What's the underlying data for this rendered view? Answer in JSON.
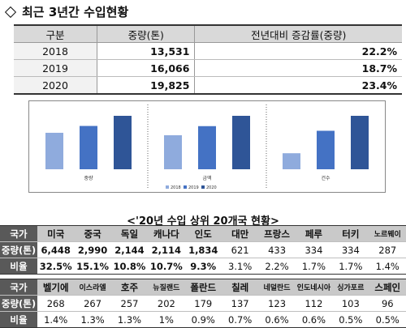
{
  "page": {
    "title": "최근 3년간 수입현황"
  },
  "summary": {
    "headers": [
      "구분",
      "중량(톤)",
      "전년대비 증감률(중량)"
    ],
    "rows": [
      {
        "year": "2018",
        "weight": "13,531",
        "rate": "22.2%"
      },
      {
        "year": "2019",
        "weight": "16,066",
        "rate": "18.7%"
      },
      {
        "year": "2020",
        "weight": "19,825",
        "rate": "23.4%"
      }
    ]
  },
  "chart_data": {
    "type": "bar",
    "categories": [
      "중량",
      "금액",
      "건수"
    ],
    "series": [
      {
        "name": "2018",
        "values": [
          13531,
          56,
          30
        ]
      },
      {
        "name": "2019",
        "values": [
          16066,
          71,
          72
        ]
      },
      {
        "name": "2020",
        "values": [
          19825,
          88,
          100
        ]
      }
    ],
    "colors": [
      "#8fabdd",
      "#4472c4",
      "#2f5597"
    ],
    "legend_position": "bottom",
    "grid": false
  },
  "top20": {
    "title": "<'20년 수입 상위 20개국 현황>",
    "labels": {
      "country": "국가",
      "weight": "중량(톤)",
      "ratio": "비율"
    },
    "part1": {
      "countries": [
        "미국",
        "중국",
        "독일",
        "캐나다",
        "인도",
        "대만",
        "프랑스",
        "페루",
        "터키",
        "노르웨이"
      ],
      "weights": [
        "6,448",
        "2,990",
        "2,144",
        "2,114",
        "1,834",
        "621",
        "433",
        "334",
        "334",
        "287"
      ],
      "ratios": [
        "32.5%",
        "15.1%",
        "10.8%",
        "10.7%",
        "9.3%",
        "3.1%",
        "2.2%",
        "1.7%",
        "1.7%",
        "1.4%"
      ]
    },
    "part2": {
      "countries": [
        "벨기에",
        "이스라엘",
        "호주",
        "뉴질랜드",
        "폴란드",
        "칠레",
        "네덜란드",
        "인도네시아",
        "싱가포르",
        "스페인"
      ],
      "weights": [
        "268",
        "267",
        "257",
        "202",
        "179",
        "137",
        "123",
        "112",
        "103",
        "96"
      ],
      "ratios": [
        "1.4%",
        "1.3%",
        "1.3%",
        "1%",
        "0.9%",
        "0.7%",
        "0.6%",
        "0.6%",
        "0.5%",
        "0.5%"
      ]
    }
  }
}
